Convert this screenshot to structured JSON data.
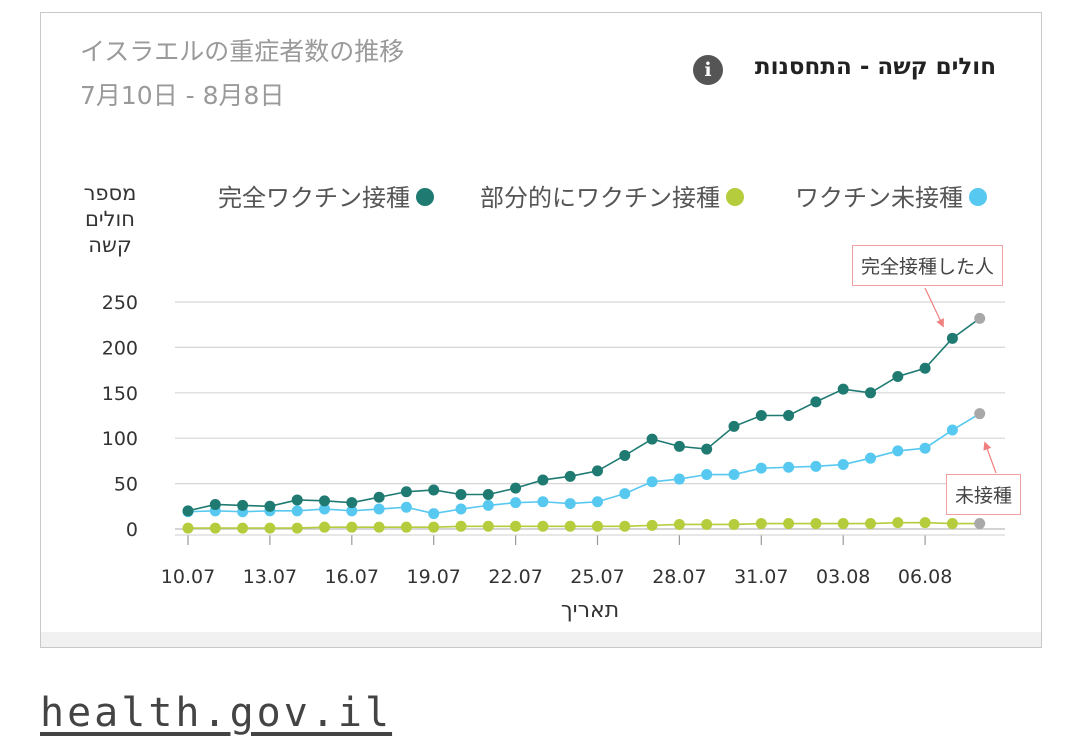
{
  "header": {
    "jp_title": "イスラエルの重症者数の推移",
    "jp_range": "7月10日 - 8月8日",
    "he_title": "חולים קשה - התחסנות",
    "info_glyph": "i"
  },
  "legend": {
    "full": "完全ワクチン接種",
    "partial": "部分的にワクチン接種",
    "unvacc": "ワクチン未接種"
  },
  "callouts": {
    "full_label": "完全接種した人",
    "unvacc_label": "未接種"
  },
  "source": "health.gov.il",
  "chart_data": {
    "type": "line",
    "title": "חולים קשה - התחסנות",
    "ylabel": [
      "מספר",
      "חולים",
      "קשה"
    ],
    "xlabel": "תאריך",
    "ylim": [
      0,
      250
    ],
    "yticks": [
      0,
      50,
      100,
      150,
      200,
      250
    ],
    "grid": true,
    "legend_position": "top",
    "x": [
      "10.07",
      "11.07",
      "12.07",
      "13.07",
      "14.07",
      "15.07",
      "16.07",
      "17.07",
      "18.07",
      "19.07",
      "20.07",
      "21.07",
      "22.07",
      "23.07",
      "24.07",
      "25.07",
      "26.07",
      "27.07",
      "28.07",
      "29.07",
      "30.07",
      "31.07",
      "01.08",
      "02.08",
      "03.08",
      "04.08",
      "05.08",
      "06.08",
      "07.08",
      "08.08"
    ],
    "xtick_labels": [
      "10.07",
      "13.07",
      "16.07",
      "19.07",
      "22.07",
      "25.07",
      "28.07",
      "31.07",
      "03.08",
      "06.08"
    ],
    "series": [
      {
        "name": "完全ワクチン接種",
        "color": "#1f7a72",
        "values": [
          20,
          27,
          26,
          25,
          32,
          31,
          29,
          35,
          41,
          43,
          38,
          38,
          45,
          54,
          58,
          64,
          81,
          99,
          91,
          88,
          113,
          125,
          125,
          140,
          154,
          150,
          168,
          177,
          210,
          232
        ]
      },
      {
        "name": "部分的にワクチン接種",
        "color": "#b5cc3c",
        "values": [
          1,
          1,
          1,
          1,
          1,
          2,
          2,
          2,
          2,
          2,
          3,
          3,
          3,
          3,
          3,
          3,
          3,
          4,
          5,
          5,
          5,
          6,
          6,
          6,
          6,
          6,
          7,
          7,
          6,
          6
        ]
      },
      {
        "name": "ワクチン未接種",
        "color": "#57c8f0",
        "values": [
          19,
          20,
          19,
          20,
          20,
          22,
          20,
          22,
          24,
          17,
          22,
          26,
          29,
          30,
          28,
          30,
          39,
          52,
          55,
          60,
          60,
          67,
          68,
          69,
          71,
          78,
          86,
          89,
          109,
          127
        ]
      }
    ],
    "last_point_color": "#a8a8a8"
  }
}
